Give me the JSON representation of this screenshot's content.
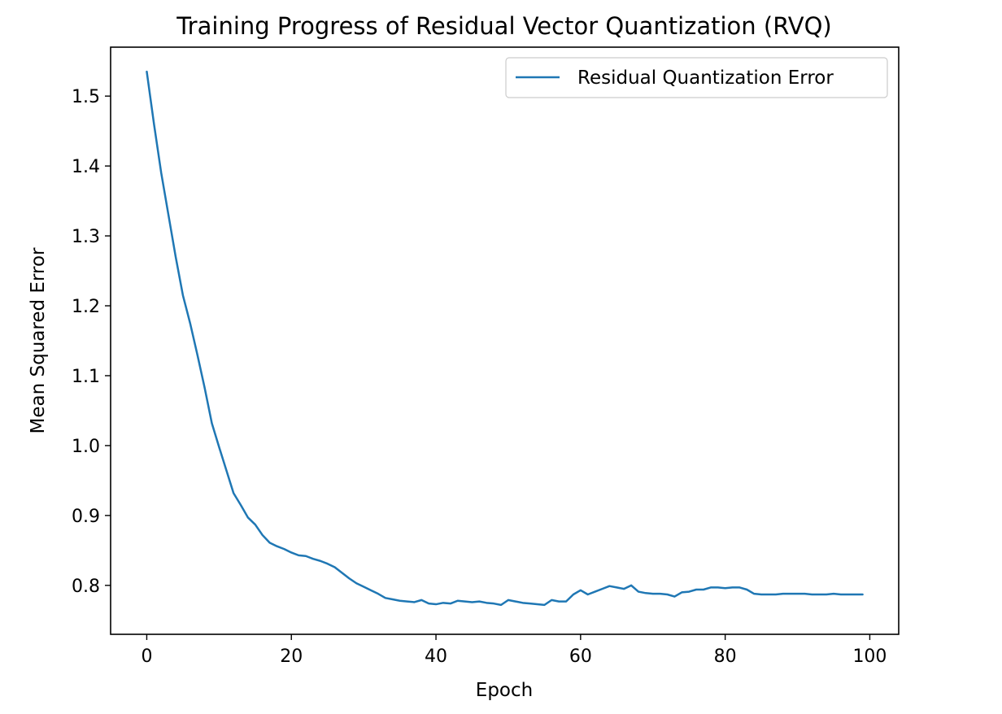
{
  "chart_data": {
    "type": "line",
    "title": "Training Progress of Residual Vector Quantization (RVQ)",
    "xlabel": "Epoch",
    "ylabel": "Mean Squared Error",
    "xlim": [
      -5.0,
      104.0
    ],
    "ylim": [
      0.73,
      1.57
    ],
    "xticks": [
      0,
      20,
      40,
      60,
      80,
      100
    ],
    "xtick_labels": [
      "0",
      "20",
      "40",
      "60",
      "80",
      "100"
    ],
    "yticks": [
      0.8,
      0.9,
      1.0,
      1.1,
      1.2,
      1.3,
      1.4,
      1.5
    ],
    "ytick_labels": [
      "0.8",
      "0.9",
      "1.0",
      "1.1",
      "1.2",
      "1.3",
      "1.4",
      "1.5"
    ],
    "grid": false,
    "legend_position": "upper-right",
    "series": [
      {
        "name": "Residual Quantization Error",
        "color": "#1f77b4",
        "x": [
          0,
          1,
          2,
          3,
          4,
          5,
          6,
          7,
          8,
          9,
          10,
          11,
          12,
          13,
          14,
          15,
          16,
          17,
          18,
          19,
          20,
          21,
          22,
          23,
          24,
          25,
          26,
          27,
          28,
          29,
          30,
          31,
          32,
          33,
          34,
          35,
          36,
          37,
          38,
          39,
          40,
          41,
          42,
          43,
          44,
          45,
          46,
          47,
          48,
          49,
          50,
          51,
          52,
          53,
          54,
          55,
          56,
          57,
          58,
          59,
          60,
          61,
          62,
          63,
          64,
          65,
          66,
          67,
          68,
          69,
          70,
          71,
          72,
          73,
          74,
          75,
          76,
          77,
          78,
          79,
          80,
          81,
          82,
          83,
          84,
          85,
          86,
          87,
          88,
          89,
          90,
          91,
          92,
          93,
          94,
          95,
          96,
          97,
          98,
          99
        ],
        "values": [
          1.535,
          1.46,
          1.39,
          1.33,
          1.27,
          1.215,
          1.175,
          1.13,
          1.083,
          1.032,
          0.998,
          0.965,
          0.932,
          0.915,
          0.897,
          0.887,
          0.872,
          0.861,
          0.856,
          0.852,
          0.847,
          0.843,
          0.842,
          0.838,
          0.835,
          0.831,
          0.826,
          0.818,
          0.81,
          0.803,
          0.798,
          0.793,
          0.788,
          0.782,
          0.78,
          0.778,
          0.777,
          0.776,
          0.779,
          0.774,
          0.773,
          0.775,
          0.774,
          0.778,
          0.777,
          0.776,
          0.777,
          0.775,
          0.774,
          0.772,
          0.779,
          0.777,
          0.775,
          0.774,
          0.773,
          0.772,
          0.779,
          0.777,
          0.777,
          0.787,
          0.793,
          0.787,
          0.791,
          0.795,
          0.799,
          0.797,
          0.795,
          0.8,
          0.791,
          0.789,
          0.788,
          0.788,
          0.787,
          0.784,
          0.79,
          0.791,
          0.794,
          0.794,
          0.797,
          0.797,
          0.796,
          0.797,
          0.797,
          0.794,
          0.788,
          0.787,
          0.787,
          0.787,
          0.788,
          0.788,
          0.788,
          0.788,
          0.787,
          0.787,
          0.787,
          0.788,
          0.787,
          0.787,
          0.787,
          0.787
        ]
      }
    ]
  }
}
